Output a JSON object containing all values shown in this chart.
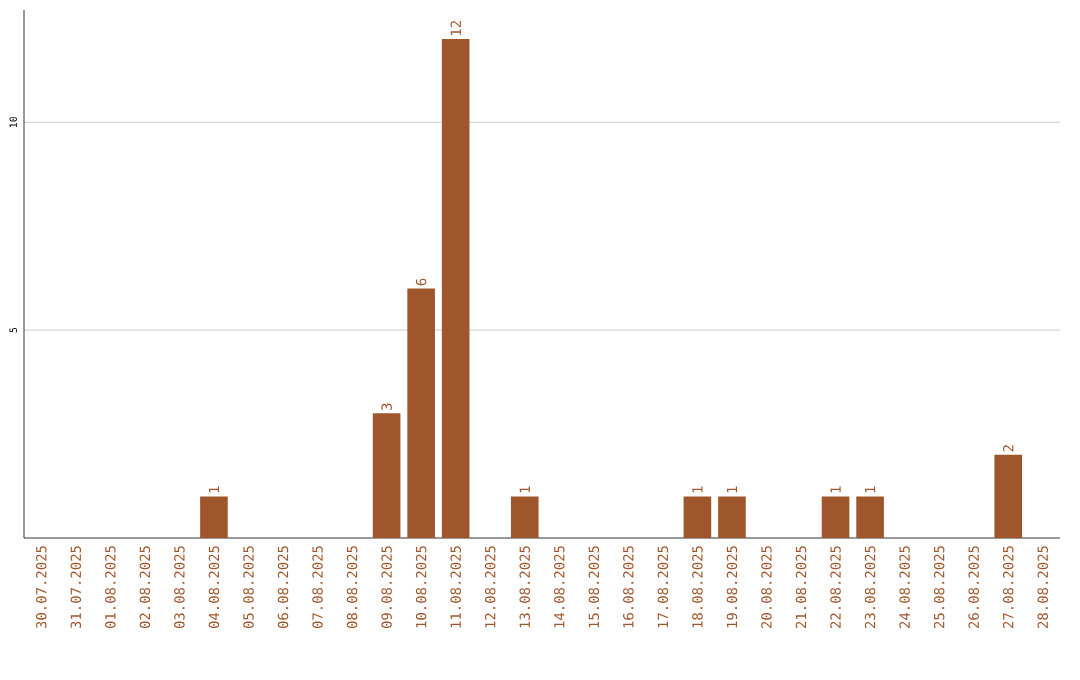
{
  "chart_data": {
    "type": "bar",
    "categories": [
      "30.07.2025",
      "31.07.2025",
      "01.08.2025",
      "02.08.2025",
      "03.08.2025",
      "04.08.2025",
      "05.08.2025",
      "06.08.2025",
      "07.08.2025",
      "08.08.2025",
      "09.08.2025",
      "10.08.2025",
      "11.08.2025",
      "12.08.2025",
      "13.08.2025",
      "14.08.2025",
      "15.08.2025",
      "16.08.2025",
      "17.08.2025",
      "18.08.2025",
      "19.08.2025",
      "20.08.2025",
      "21.08.2025",
      "22.08.2025",
      "23.08.2025",
      "24.08.2025",
      "25.08.2025",
      "26.08.2025",
      "27.08.2025",
      "28.08.2025"
    ],
    "values": [
      0,
      0,
      0,
      0,
      0,
      1,
      0,
      0,
      0,
      0,
      3,
      6,
      12,
      0,
      1,
      0,
      0,
      0,
      0,
      1,
      1,
      0,
      0,
      1,
      1,
      0,
      0,
      0,
      2,
      0
    ],
    "value_labels": [
      null,
      null,
      null,
      null,
      null,
      "1",
      null,
      null,
      null,
      null,
      "3",
      "6",
      "12",
      null,
      "1",
      null,
      null,
      null,
      null,
      "1",
      "1",
      null,
      null,
      "1",
      "1",
      null,
      null,
      null,
      "2",
      null
    ],
    "color": "#a0562c",
    "ylim": [
      0,
      12.7
    ],
    "yticks": [
      5,
      10
    ],
    "grid": "y"
  }
}
